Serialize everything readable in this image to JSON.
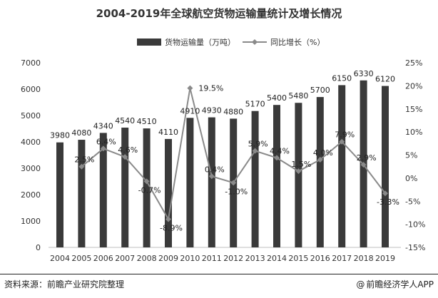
{
  "chart_data": {
    "type": "bar",
    "title": "2004-2019年全球航空货物运输量统计及增长情况",
    "categories": [
      "2004",
      "2005",
      "2006",
      "2007",
      "2008",
      "2009",
      "2010",
      "2011",
      "2012",
      "2013",
      "2014",
      "2015",
      "2016",
      "2017",
      "2018",
      "2019"
    ],
    "series": [
      {
        "name": "货物运输量（万吨）",
        "type": "bar",
        "axis": "left",
        "color": "#3a3a3a",
        "values": [
          3980,
          4080,
          4340,
          4540,
          4510,
          4110,
          4910,
          4930,
          4880,
          5170,
          5400,
          5480,
          5700,
          6150,
          6330,
          6120
        ],
        "labels": [
          "3980",
          "4080",
          "4340",
          "4540",
          "4510",
          "4110",
          "4910",
          "4930",
          "4880",
          "5170",
          "5400",
          "5480",
          "5700",
          "6150",
          "6330",
          "6120"
        ]
      },
      {
        "name": "同比增长（%）",
        "type": "line",
        "axis": "right",
        "color": "#8a8a8a",
        "values": [
          null,
          2.5,
          6.4,
          4.6,
          -0.7,
          -8.9,
          19.5,
          0.4,
          -1.0,
          5.9,
          4.4,
          1.5,
          4.0,
          7.9,
          2.9,
          -3.3
        ],
        "labels": [
          "",
          "2.5%",
          "6.4%",
          "4.6%",
          "-0.7%",
          "-8.9%",
          "19.5%",
          "0.4%",
          "-1.0%",
          "5.9%",
          "4.4%",
          "1.5%",
          "4.0%",
          "7.9%",
          "2.9%",
          "-3.3%"
        ]
      }
    ],
    "y_left": {
      "min": 0,
      "max": 7000,
      "ticks": [
        "0",
        "1000",
        "2000",
        "3000",
        "4000",
        "5000",
        "6000",
        "7000"
      ]
    },
    "y_right": {
      "min": -15,
      "max": 25,
      "ticks": [
        "-15%",
        "-10%",
        "-5%",
        "0%",
        "5%",
        "10%",
        "15%",
        "20%",
        "25%"
      ]
    },
    "legend_position": "top-center",
    "grid": false
  },
  "footer": {
    "source": "资料来源：前瞻产业研究院整理",
    "credit_at": "@",
    "credit": "前瞻经济学人APP"
  }
}
